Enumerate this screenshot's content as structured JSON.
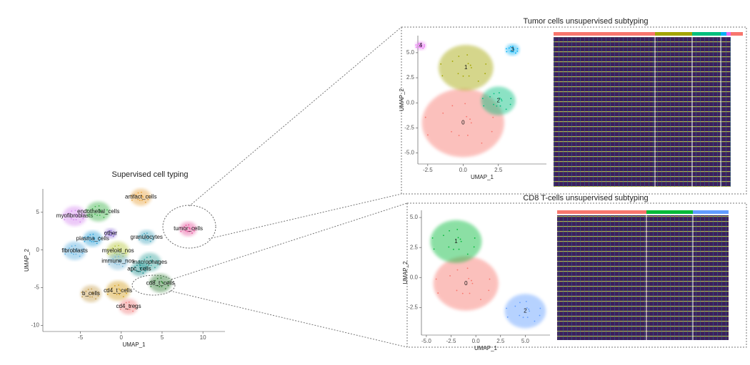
{
  "chart_data": [
    {
      "type": "scatter",
      "title": "Supervised cell typing",
      "x_label": "UMAP_1",
      "y_label": "UMAP_2",
      "xlim": [
        -9.6,
        12.7
      ],
      "ylim": [
        -10.8,
        8.1
      ],
      "xticks": [
        -5,
        0,
        5,
        10
      ],
      "yticks": [
        -10,
        -5,
        0,
        5
      ],
      "clusters": [
        {
          "label": "artifact_cells",
          "x": 2.4,
          "y": 7.0,
          "color": "#e8a33d"
        },
        {
          "label": "myofibroblasts",
          "x": -5.7,
          "y": 4.5,
          "color": "#d68bf0"
        },
        {
          "label": "endothelial_cells",
          "x": -2.8,
          "y": 5.1,
          "color": "#3cb44b"
        },
        {
          "label": "tumor_cells",
          "x": 8.2,
          "y": 2.8,
          "color": "#e6559c"
        },
        {
          "label": "plasma_cells",
          "x": -3.5,
          "y": 1.5,
          "color": "#2a9fd6"
        },
        {
          "label": "other",
          "x": -1.3,
          "y": 2.2,
          "color": "#8b6bd6"
        },
        {
          "label": "granulocytes",
          "x": 3.1,
          "y": 1.7,
          "color": "#4aa8c0"
        },
        {
          "label": "fibroblasts",
          "x": -5.7,
          "y": -0.1,
          "color": "#5fb0e0"
        },
        {
          "label": "myeloid_nos",
          "x": -0.4,
          "y": -0.1,
          "color": "#b8c840"
        },
        {
          "label": "immune_nos",
          "x": -0.4,
          "y": -1.5,
          "color": "#7ab8d8"
        },
        {
          "label": "macrophages",
          "x": 3.5,
          "y": -1.6,
          "color": "#3aa6a0"
        },
        {
          "label": "apc_cells",
          "x": 2.2,
          "y": -2.5,
          "color": "#1e8f8f"
        },
        {
          "label": "cd8_t_cells",
          "x": 4.8,
          "y": -4.4,
          "color": "#2e7d32"
        },
        {
          "label": "cd4_t_cells",
          "x": -0.4,
          "y": -5.4,
          "color": "#d4a020"
        },
        {
          "label": "b_cells",
          "x": -3.7,
          "y": -5.8,
          "color": "#c8a050"
        },
        {
          "label": "cd4_tregs",
          "x": 0.9,
          "y": -7.5,
          "color": "#f08080"
        }
      ]
    },
    {
      "type": "scatter",
      "title": "Tumor cells unsupervised subtyping",
      "x_label": "UMAP_1",
      "y_label": "UMAP_2",
      "xlim": [
        -3.2,
        5.9
      ],
      "ylim": [
        -6.1,
        6.7
      ],
      "xticks": [
        {
          "value": -2.5,
          "label": "-2.5"
        },
        {
          "value": 0,
          "label": "0.0"
        },
        {
          "value": 2.5,
          "label": "2.5"
        }
      ],
      "yticks": [
        {
          "value": -5,
          "label": "-5.0"
        },
        {
          "value": -2.5,
          "label": "-2.5"
        },
        {
          "value": 0,
          "label": "0.0"
        },
        {
          "value": 2.5,
          "label": "2.5"
        },
        {
          "value": 5,
          "label": "5.0"
        }
      ],
      "clusters": [
        {
          "label": "0",
          "x": 0.0,
          "y": -2.0,
          "color": "#f8766d"
        },
        {
          "label": "1",
          "x": 0.2,
          "y": 3.5,
          "color": "#a3a500"
        },
        {
          "label": "2",
          "x": 2.5,
          "y": 0.2,
          "color": "#00bf7d"
        },
        {
          "label": "3",
          "x": 3.5,
          "y": 5.3,
          "color": "#00b0f6"
        },
        {
          "label": "4",
          "x": -3.0,
          "y": 5.7,
          "color": "#e76bf3"
        }
      ]
    },
    {
      "type": "scatter",
      "title": "CD8 T-cells unsupervised subtyping",
      "x_label": "UMAP_1",
      "y_label": "UMAP_2",
      "xlim": [
        -5.5,
        7.5
      ],
      "ylim": [
        -4.8,
        5.6
      ],
      "xticks": [
        {
          "value": -5,
          "label": "-5.0"
        },
        {
          "value": -2.5,
          "label": "-2.5"
        },
        {
          "value": 0,
          "label": "0.0"
        },
        {
          "value": 2.5,
          "label": "2.5"
        },
        {
          "value": 5,
          "label": "5.0"
        }
      ],
      "yticks": [
        {
          "value": -2.5,
          "label": "-2.5"
        },
        {
          "value": 0,
          "label": "0.0"
        },
        {
          "value": 2.5,
          "label": "2.5"
        },
        {
          "value": 5,
          "label": "5.0"
        }
      ],
      "clusters": [
        {
          "label": "0",
          "x": -1.0,
          "y": -0.5,
          "color": "#f8766d"
        },
        {
          "label": "1",
          "x": -2.0,
          "y": 3.0,
          "color": "#00ba38"
        },
        {
          "label": "2",
          "x": 5.0,
          "y": -2.8,
          "color": "#619cff"
        }
      ]
    }
  ]
}
